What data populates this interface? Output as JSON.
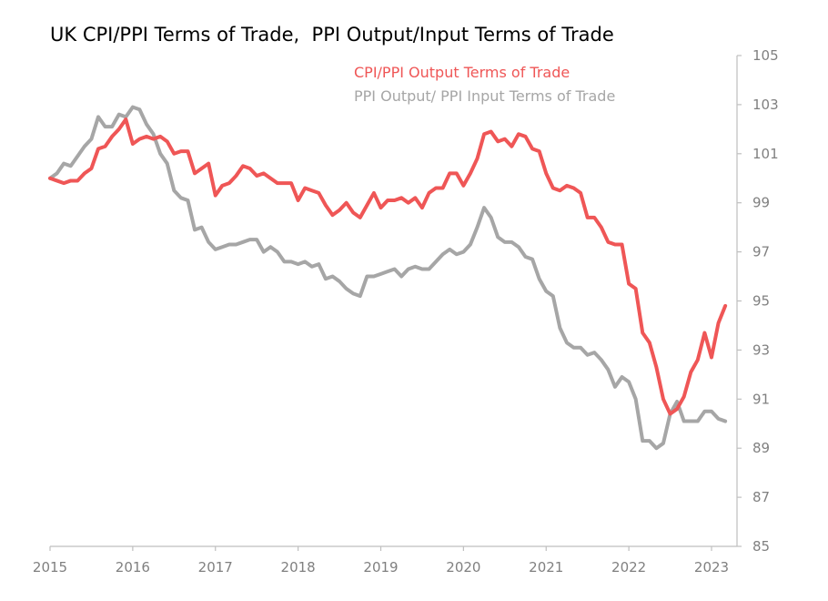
{
  "chart_data": {
    "type": "line",
    "title": "UK CPI/PPI Terms of Trade,  PPI Output/Input Terms of Trade",
    "xlabel": "",
    "ylabel": "",
    "xlim": [
      2015.0,
      2023.25
    ],
    "ylim": [
      85,
      105
    ],
    "x_ticks": [
      2015,
      2016,
      2017,
      2018,
      2019,
      2020,
      2021,
      2022,
      2023
    ],
    "x_tick_labels": [
      "2015",
      "2016",
      "2017",
      "2018",
      "2019",
      "2020",
      "2021",
      "2022",
      "2023"
    ],
    "y_ticks": [
      85,
      87,
      89,
      91,
      93,
      95,
      97,
      99,
      101,
      103,
      105
    ],
    "y_tick_labels": [
      "85",
      "87",
      "89",
      "91",
      "93",
      "95",
      "97",
      "99",
      "101",
      "103",
      "105"
    ],
    "y_axis_position": "right",
    "grid": false,
    "legend_placement": "top-center",
    "x_start": 2015.0,
    "x_step_years": 0.08333,
    "series": [
      {
        "name": "CPI/PPI Output Terms of Trade",
        "color": "#ef5656",
        "values": [
          100.0,
          99.9,
          99.8,
          99.9,
          99.9,
          100.2,
          100.4,
          101.2,
          101.3,
          101.7,
          102.0,
          102.4,
          101.4,
          101.6,
          101.7,
          101.6,
          101.7,
          101.5,
          101.0,
          101.1,
          101.1,
          100.2,
          100.4,
          100.6,
          99.3,
          99.7,
          99.8,
          100.1,
          100.5,
          100.4,
          100.1,
          100.2,
          100.0,
          99.8,
          99.8,
          99.8,
          99.1,
          99.6,
          99.5,
          99.4,
          98.9,
          98.5,
          98.7,
          99.0,
          98.6,
          98.4,
          98.9,
          99.4,
          98.8,
          99.1,
          99.1,
          99.2,
          99.0,
          99.2,
          98.8,
          99.4,
          99.6,
          99.6,
          100.2,
          100.2,
          99.7,
          100.2,
          100.8,
          101.8,
          101.9,
          101.5,
          101.6,
          101.3,
          101.8,
          101.7,
          101.2,
          101.1,
          100.2,
          99.6,
          99.5,
          99.7,
          99.6,
          99.4,
          98.4,
          98.4,
          98.0,
          97.4,
          97.3,
          97.3,
          95.7,
          95.5,
          93.7,
          93.3,
          92.3,
          91.0,
          90.4,
          90.6,
          91.1,
          92.1,
          92.6,
          93.7,
          92.7,
          94.1,
          94.8
        ]
      },
      {
        "name": "PPI Output/ PPI Input Terms of Trade",
        "color": "#a6a6a6",
        "values": [
          100.0,
          100.2,
          100.6,
          100.5,
          100.9,
          101.3,
          101.6,
          102.5,
          102.1,
          102.1,
          102.6,
          102.5,
          102.9,
          102.8,
          102.2,
          101.8,
          101.0,
          100.6,
          99.5,
          99.2,
          99.1,
          97.9,
          98.0,
          97.4,
          97.1,
          97.2,
          97.3,
          97.3,
          97.4,
          97.5,
          97.5,
          97.0,
          97.2,
          97.0,
          96.6,
          96.6,
          96.5,
          96.6,
          96.4,
          96.5,
          95.9,
          96.0,
          95.8,
          95.5,
          95.3,
          95.2,
          96.0,
          96.0,
          96.1,
          96.2,
          96.3,
          96.0,
          96.3,
          96.4,
          96.3,
          96.3,
          96.6,
          96.9,
          97.1,
          96.9,
          97.0,
          97.3,
          98.0,
          98.8,
          98.4,
          97.6,
          97.4,
          97.4,
          97.2,
          96.8,
          96.7,
          95.9,
          95.4,
          95.2,
          93.9,
          93.3,
          93.1,
          93.1,
          92.8,
          92.9,
          92.6,
          92.2,
          91.5,
          91.9,
          91.7,
          91.0,
          89.3,
          89.3,
          89.0,
          89.2,
          90.4,
          90.9,
          90.1,
          90.1,
          90.1,
          90.5,
          90.5,
          90.2,
          90.1
        ]
      }
    ]
  }
}
